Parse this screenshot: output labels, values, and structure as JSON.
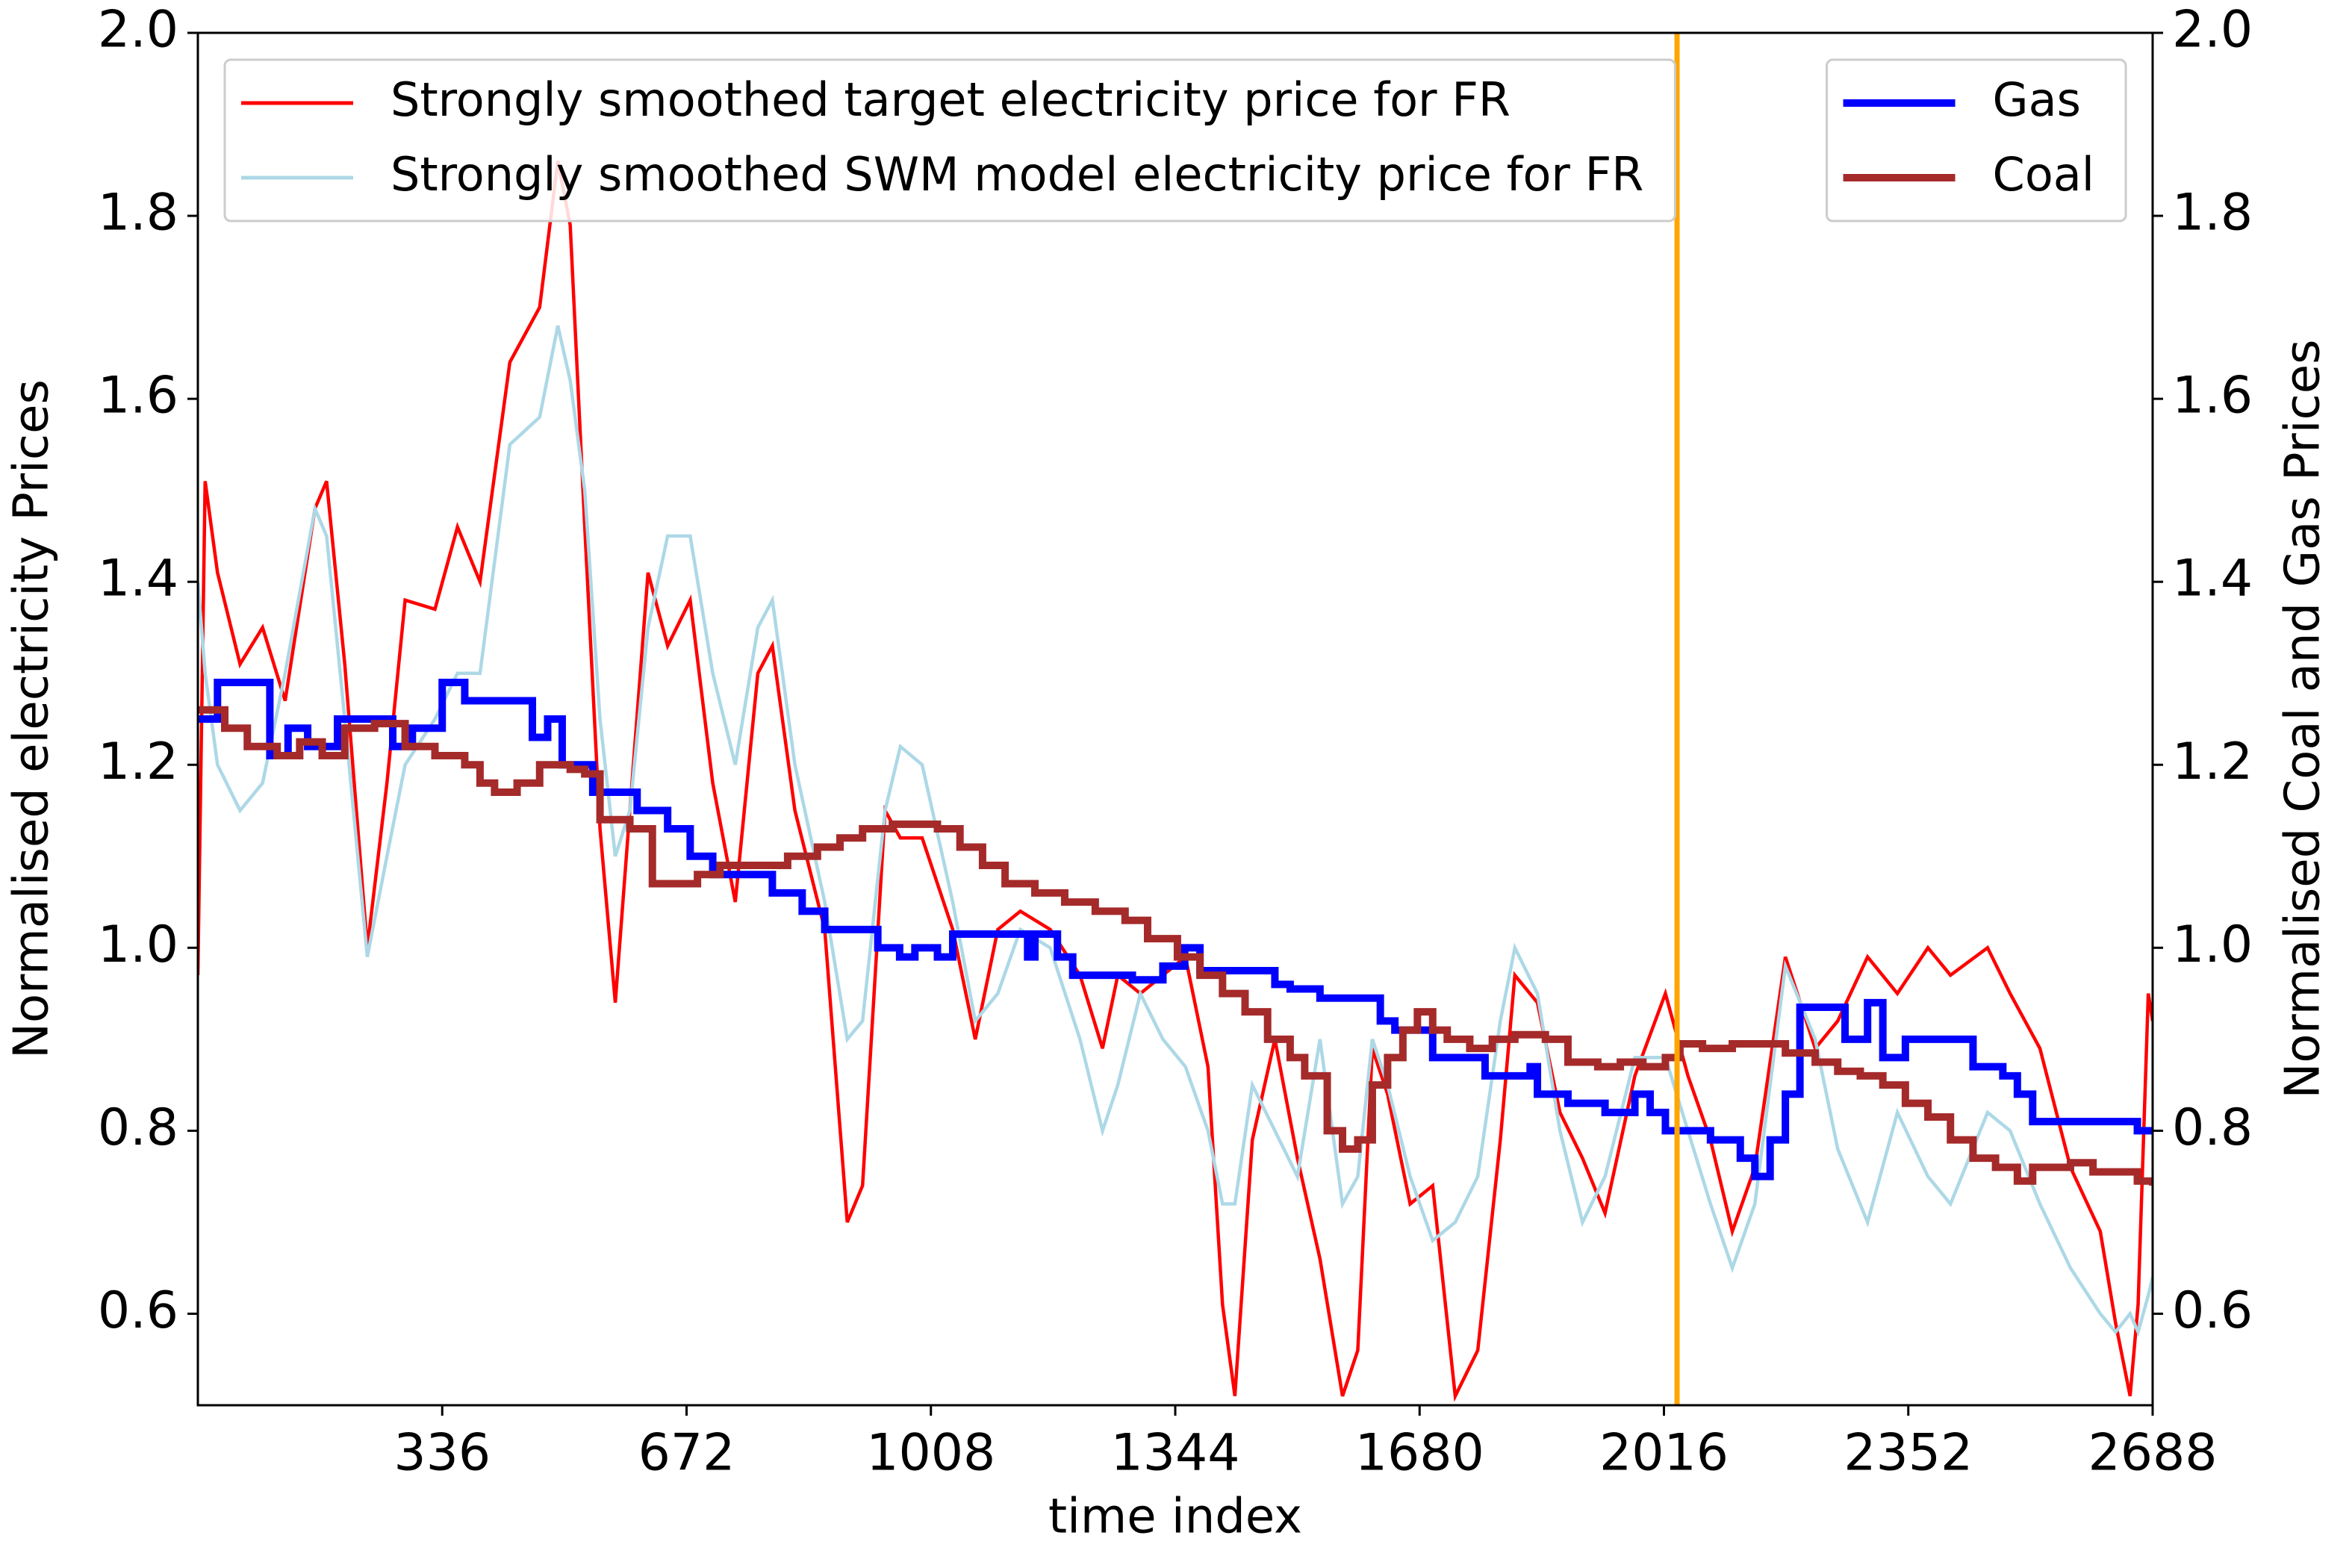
{
  "chart_data": {
    "type": "line",
    "xlabel": "time index",
    "ylabel": "Normalised electricity Prices",
    "y2label": "Normalised Coal and Gas Prices",
    "xlim": [
      0,
      2688
    ],
    "xticks": [
      336,
      672,
      1008,
      1344,
      1680,
      2016,
      2352,
      2688
    ],
    "ylim": [
      0.5,
      2.0
    ],
    "yticks": [
      0.6,
      0.8,
      {
        "value": 1.0,
        "label": "1.0"
      },
      1.2,
      1.4,
      1.6,
      1.8,
      {
        "value": 2.0,
        "label": "2.0"
      }
    ],
    "y2lim": [
      0.5,
      2.0
    ],
    "y2ticks": [
      0.6,
      0.8,
      {
        "value": 1.0,
        "label": "1.0"
      },
      1.2,
      1.4,
      1.6,
      1.8,
      {
        "value": 2.0,
        "label": "2.0"
      }
    ],
    "legend": "upper left",
    "legend2": "upper right",
    "vline": {
      "x": 2034,
      "color": "#ffa500"
    },
    "series": [
      {
        "name": "Strongly smoothed target electricity price for FR",
        "color": "#ff0000",
        "x": [
          0,
          10,
          27,
          58,
          89,
          120,
          161,
          177,
          202,
          233,
          260,
          285,
          326,
          357,
          388,
          429,
          470,
          495,
          512,
          532,
          553,
          574,
          594,
          619,
          646,
          677,
          708,
          739,
          770,
          790,
          821,
          862,
          893,
          914,
          945,
          966,
          996,
          1038,
          1069,
          1100,
          1131,
          1172,
          1213,
          1244,
          1265,
          1296,
          1327,
          1358,
          1389,
          1409,
          1426,
          1450,
          1481,
          1512,
          1543,
          1574,
          1595,
          1615,
          1636,
          1667,
          1698,
          1729,
          1760,
          1791,
          1811,
          1842,
          1873,
          1904,
          1935,
          1976,
          2018,
          2049,
          2080,
          2110,
          2141,
          2183,
          2224,
          2255,
          2296,
          2337,
          2379,
          2410,
          2461,
          2492,
          2533,
          2575,
          2616,
          2637,
          2657,
          2668,
          2682,
          2688
        ],
        "values": [
          0.97,
          1.51,
          1.41,
          1.31,
          1.35,
          1.27,
          1.48,
          1.51,
          1.31,
          1.0,
          1.18,
          1.38,
          1.37,
          1.46,
          1.4,
          1.64,
          1.7,
          1.86,
          1.79,
          1.46,
          1.13,
          0.94,
          1.15,
          1.41,
          1.33,
          1.38,
          1.18,
          1.05,
          1.3,
          1.33,
          1.15,
          1.02,
          0.7,
          0.74,
          1.15,
          1.12,
          1.12,
          1.02,
          0.9,
          1.02,
          1.04,
          1.02,
          0.97,
          0.89,
          0.97,
          0.95,
          0.97,
          0.99,
          0.87,
          0.61,
          0.51,
          0.79,
          0.9,
          0.77,
          0.66,
          0.51,
          0.56,
          0.89,
          0.84,
          0.72,
          0.74,
          0.51,
          0.56,
          0.79,
          0.97,
          0.94,
          0.82,
          0.77,
          0.71,
          0.86,
          0.95,
          0.86,
          0.79,
          0.69,
          0.76,
          0.99,
          0.89,
          0.92,
          0.99,
          0.95,
          1.0,
          0.97,
          1.0,
          0.95,
          0.89,
          0.76,
          0.69,
          0.59,
          0.51,
          0.61,
          0.95,
          0.92
        ]
      },
      {
        "name": "Strongly smoothed SWM model electricity price for FR",
        "color": "#add8e6",
        "x": [
          0,
          10,
          27,
          58,
          89,
          120,
          161,
          177,
          202,
          233,
          260,
          285,
          326,
          357,
          388,
          429,
          470,
          495,
          512,
          532,
          553,
          574,
          594,
          619,
          646,
          677,
          708,
          739,
          770,
          790,
          821,
          862,
          893,
          914,
          945,
          966,
          996,
          1038,
          1069,
          1100,
          1131,
          1172,
          1213,
          1244,
          1265,
          1296,
          1327,
          1358,
          1389,
          1409,
          1426,
          1450,
          1481,
          1512,
          1543,
          1574,
          1595,
          1615,
          1636,
          1667,
          1698,
          1729,
          1760,
          1791,
          1811,
          1842,
          1873,
          1904,
          1935,
          1976,
          2018,
          2049,
          2080,
          2110,
          2141,
          2183,
          2224,
          2255,
          2296,
          2337,
          2379,
          2410,
          2461,
          2492,
          2533,
          2575,
          2616,
          2637,
          2657,
          2668,
          2682,
          2688
        ],
        "values": [
          1.4,
          1.3,
          1.2,
          1.15,
          1.18,
          1.3,
          1.48,
          1.45,
          1.25,
          0.99,
          1.1,
          1.2,
          1.25,
          1.3,
          1.3,
          1.55,
          1.58,
          1.68,
          1.62,
          1.5,
          1.25,
          1.1,
          1.15,
          1.35,
          1.45,
          1.45,
          1.3,
          1.2,
          1.35,
          1.38,
          1.2,
          1.05,
          0.9,
          0.92,
          1.15,
          1.22,
          1.2,
          1.05,
          0.92,
          0.95,
          1.02,
          1.0,
          0.9,
          0.8,
          0.85,
          0.95,
          0.9,
          0.87,
          0.8,
          0.72,
          0.72,
          0.85,
          0.8,
          0.75,
          0.9,
          0.72,
          0.75,
          0.9,
          0.85,
          0.75,
          0.68,
          0.7,
          0.75,
          0.92,
          1.0,
          0.95,
          0.8,
          0.7,
          0.75,
          0.88,
          0.88,
          0.8,
          0.72,
          0.65,
          0.72,
          0.98,
          0.9,
          0.78,
          0.7,
          0.82,
          0.75,
          0.72,
          0.82,
          0.8,
          0.72,
          0.65,
          0.6,
          0.58,
          0.6,
          0.58,
          0.62,
          0.64
        ]
      },
      {
        "name": "Gas",
        "color": "#0000ff",
        "axis": "y2",
        "step": true,
        "x": [
          0,
          27,
          99,
          124,
          151,
          192,
          268,
          295,
          336,
          367,
          460,
          481,
          501,
          543,
          604,
          646,
          677,
          708,
          790,
          831,
          862,
          935,
          965,
          986,
          1017,
          1038,
          1141,
          1151,
          1182,
          1203,
          1285,
          1327,
          1357,
          1378,
          1450,
          1481,
          1502,
          1543,
          1626,
          1646,
          1698,
          1770,
          1832,
          1842,
          1884,
          1935,
          1976,
          1997,
          2018,
          2080,
          2121,
          2141,
          2162,
          2183,
          2203,
          2265,
          2296,
          2317,
          2348,
          2441,
          2482,
          2502,
          2523,
          2667,
          2688
        ],
        "values": [
          1.25,
          1.29,
          1.21,
          1.24,
          1.22,
          1.25,
          1.22,
          1.24,
          1.29,
          1.27,
          1.23,
          1.25,
          1.2,
          1.17,
          1.15,
          1.13,
          1.1,
          1.08,
          1.06,
          1.04,
          1.02,
          1.0,
          0.99,
          1.0,
          0.99,
          1.015,
          0.99,
          1.015,
          0.99,
          0.97,
          0.965,
          0.98,
          1.0,
          0.975,
          0.975,
          0.96,
          0.955,
          0.945,
          0.92,
          0.91,
          0.88,
          0.86,
          0.87,
          0.84,
          0.83,
          0.82,
          0.84,
          0.82,
          0.8,
          0.79,
          0.77,
          0.75,
          0.79,
          0.84,
          0.935,
          0.9,
          0.94,
          0.88,
          0.9,
          0.87,
          0.86,
          0.84,
          0.81,
          0.8,
          0.8
        ]
      },
      {
        "name": "Coal",
        "color": "#a52a2a",
        "axis": "y2",
        "step": true,
        "x": [
          0,
          37,
          68,
          109,
          140,
          171,
          202,
          243,
          285,
          326,
          367,
          388,
          408,
          439,
          470,
          512,
          532,
          553,
          594,
          625,
          687,
          718,
          780,
          811,
          852,
          883,
          914,
          955,
          1017,
          1048,
          1079,
          1110,
          1151,
          1192,
          1234,
          1275,
          1306,
          1347,
          1378,
          1409,
          1440,
          1471,
          1502,
          1522,
          1553,
          1574,
          1595,
          1615,
          1636,
          1657,
          1677,
          1698,
          1718,
          1749,
          1780,
          1811,
          1853,
          1884,
          1925,
          1956,
          1987,
          2018,
          2038,
          2069,
          2110,
          2152,
          2183,
          2224,
          2255,
          2286,
          2317,
          2348,
          2379,
          2410,
          2441,
          2472,
          2502,
          2523,
          2575,
          2606,
          2667,
          2688
        ],
        "values": [
          1.26,
          1.24,
          1.22,
          1.21,
          1.225,
          1.21,
          1.24,
          1.245,
          1.22,
          1.21,
          1.2,
          1.18,
          1.17,
          1.18,
          1.2,
          1.195,
          1.19,
          1.14,
          1.13,
          1.07,
          1.08,
          1.09,
          1.09,
          1.1,
          1.11,
          1.12,
          1.13,
          1.135,
          1.13,
          1.11,
          1.09,
          1.07,
          1.06,
          1.05,
          1.04,
          1.03,
          1.01,
          0.99,
          0.97,
          0.95,
          0.93,
          0.9,
          0.88,
          0.86,
          0.8,
          0.78,
          0.79,
          0.85,
          0.88,
          0.91,
          0.93,
          0.91,
          0.9,
          0.89,
          0.9,
          0.905,
          0.9,
          0.875,
          0.87,
          0.875,
          0.87,
          0.88,
          0.895,
          0.89,
          0.895,
          0.895,
          0.885,
          0.875,
          0.865,
          0.86,
          0.85,
          0.83,
          0.815,
          0.79,
          0.77,
          0.76,
          0.745,
          0.76,
          0.765,
          0.755,
          0.745,
          0.74
        ]
      }
    ]
  }
}
